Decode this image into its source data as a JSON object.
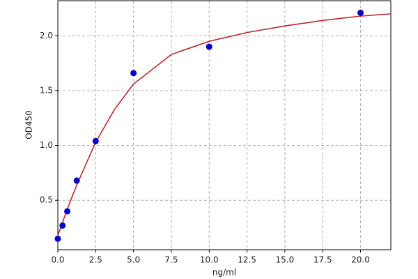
{
  "chart_data": {
    "type": "scatter",
    "x_label": "ng/ml",
    "y_label": "OD450",
    "xlim": [
      0,
      22
    ],
    "ylim": [
      0.05,
      2.32
    ],
    "xticks": [
      {
        "value": 0,
        "label": "0.0"
      },
      2.5,
      {
        "value": 5,
        "label": "5.0"
      },
      7.5,
      {
        "value": 10,
        "label": "10.0"
      },
      12.5,
      {
        "value": 15,
        "label": "15.0"
      },
      17.5,
      {
        "value": 20,
        "label": "20.0"
      }
    ],
    "yticks": [
      0.5,
      {
        "value": 1,
        "label": "1.0"
      },
      1.5,
      {
        "value": 2,
        "label": "2.0"
      }
    ],
    "grid": true,
    "series": [
      {
        "mode": "line",
        "color": "#c0282a",
        "x": [
          0,
          0.625,
          1.25,
          2.5,
          3.75,
          5,
          7.5,
          10,
          12.5,
          15,
          17.5,
          20,
          22
        ],
        "values": [
          0.18,
          0.42,
          0.64,
          1.03,
          1.33,
          1.56,
          1.83,
          1.95,
          2.03,
          2.09,
          2.14,
          2.18,
          2.2
        ]
      },
      {
        "mode": "markers",
        "color": "#0000cc",
        "x": [
          0,
          0.3125,
          0.625,
          1.25,
          2.5,
          5,
          10,
          20
        ],
        "values": [
          0.15,
          0.27,
          0.4,
          0.68,
          1.04,
          1.66,
          1.9,
          2.21
        ]
      }
    ]
  }
}
